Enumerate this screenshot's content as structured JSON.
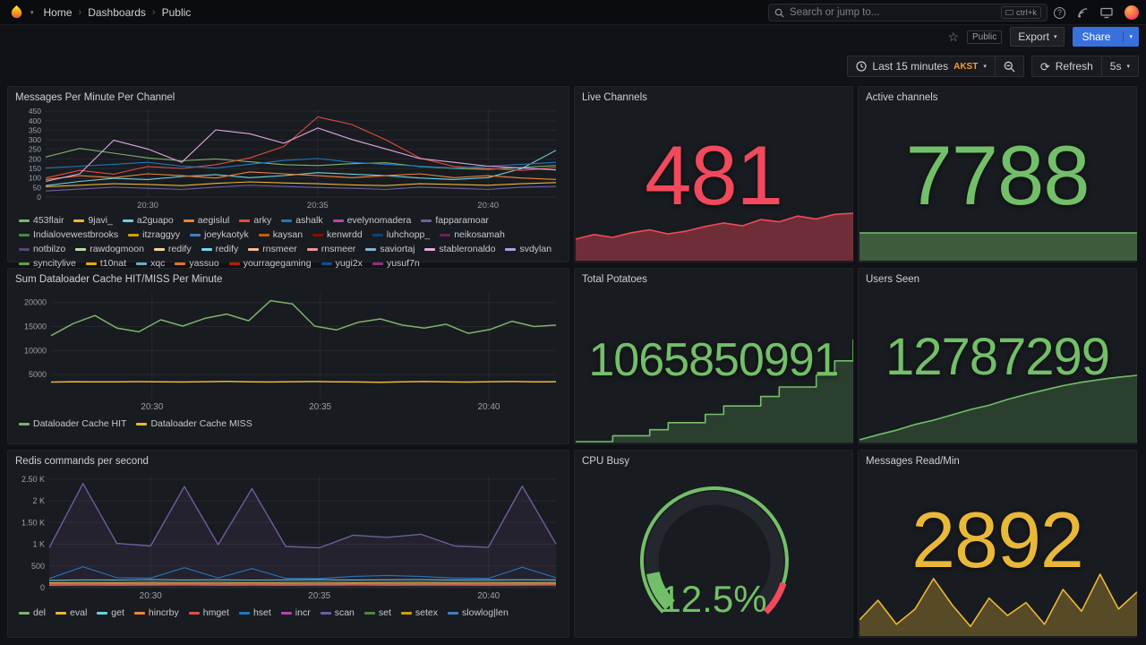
{
  "icons": {
    "separator": "›",
    "chevron_down": "▾",
    "star": "☆",
    "refresh": "⟳",
    "question_mark": "?"
  },
  "nav": {
    "breadcrumb": [
      "Home",
      "Dashboards",
      "Public"
    ],
    "search_placeholder": "Search or jump to...",
    "search_shortcut": "ctrl+k"
  },
  "toolbar": {
    "tag": "Public",
    "export_label": "Export",
    "share_label": "Share"
  },
  "controls": {
    "time_range": "Last 15 minutes",
    "timezone": "AKST",
    "timezone_color": "#FF9830",
    "refresh_label": "Refresh",
    "interval": "5s"
  },
  "panels": {
    "messages_per_minute": {
      "title": "Messages Per Minute Per Channel",
      "chart": {
        "type": "timeseries",
        "ylim": [
          0,
          460
        ],
        "tickFont": 8.5,
        "margin": {
          "l": 34,
          "r": 8,
          "t": 4,
          "b": 16
        },
        "yticks": [
          {
            "v": 0,
            "label": "0"
          },
          {
            "v": 50,
            "label": "50"
          },
          {
            "v": 100,
            "label": "100"
          },
          {
            "v": 150,
            "label": "150"
          },
          {
            "v": 200,
            "label": "200"
          },
          {
            "v": 250,
            "label": "250"
          },
          {
            "v": 300,
            "label": "300"
          },
          {
            "v": 350,
            "label": "350"
          },
          {
            "v": 400,
            "label": "400"
          },
          {
            "v": 450,
            "label": "450"
          }
        ],
        "xticks": [
          {
            "pos": 0.2,
            "label": "20:30"
          },
          {
            "pos": 0.533,
            "label": "20:35"
          },
          {
            "pos": 0.867,
            "label": "20:40"
          }
        ],
        "series": [
          {
            "name": "453flair",
            "color": "#7EB26D",
            "values": [
              210,
              255,
              230,
              205,
              190,
              200,
              185,
              170,
              165,
              175,
              180,
              160,
              150,
              145,
              155,
              165
            ]
          },
          {
            "name": "9javi_",
            "color": "#EAB839",
            "values": [
              55,
              62,
              70,
              66,
              60,
              72,
              80,
              74,
              70,
              64,
              60,
              70,
              66,
              62,
              70,
              76
            ]
          },
          {
            "name": "a2guapo",
            "color": "#6ED0E0",
            "values": [
              60,
              82,
              98,
              92,
              108,
              118,
              102,
              112,
              128,
              120,
              112,
              100,
              92,
              102,
              150,
              245
            ]
          },
          {
            "name": "aegislul",
            "color": "#EF843C",
            "values": [
              92,
              112,
              102,
              122,
              112,
              100,
              132,
              122,
              112,
              102,
              112,
              122,
              102,
              112,
              100,
              92
            ]
          },
          {
            "name": "arky",
            "color": "#E24D42",
            "values": [
              100,
              140,
              120,
              160,
              150,
              170,
              205,
              265,
              420,
              380,
              300,
              205,
              160,
              150,
              140,
              155
            ]
          },
          {
            "name": "ashalk",
            "color": "#1F78C1",
            "values": [
              152,
              162,
              172,
              182,
              162,
              152,
              172,
              192,
              202,
              182,
              172,
              162,
              152,
              162,
              172,
              182
            ]
          },
          {
            "name": "fapparamoar",
            "color": "#705DA0",
            "values": [
              32,
              42,
              52,
              46,
              40,
              52,
              62,
              56,
              50,
              46,
              40,
              52,
              46,
              40,
              52,
              56
            ]
          },
          {
            "name": "stableronaldo",
            "color": "#E5A8E2",
            "values": [
              82,
              122,
              298,
              252,
              182,
              352,
              332,
              282,
              362,
              302,
              252,
              202,
              182,
              162,
              152,
              142
            ]
          }
        ]
      },
      "legend": [
        [
          "453flair",
          "#7EB26D"
        ],
        [
          "9javi_",
          "#EAB839"
        ],
        [
          "a2guapo",
          "#6ED0E0"
        ],
        [
          "aegislul",
          "#EF843C"
        ],
        [
          "arky",
          "#E24D42"
        ],
        [
          "ashalk",
          "#1F78C1"
        ],
        [
          "evelynomadera",
          "#BA43A9"
        ],
        [
          "fapparamoar",
          "#705DA0"
        ],
        [
          "Indialovewestbrooks",
          "#508642"
        ],
        [
          "itzraggyy",
          "#CCA300"
        ],
        [
          "joeykaotyk",
          "#447EBC"
        ],
        [
          "kaysan",
          "#C15C17"
        ],
        [
          "kenwrdd",
          "#890F02"
        ],
        [
          "luhchopp_",
          "#0A437C"
        ],
        [
          "neikosamah",
          "#6D1F62"
        ],
        [
          "notbilzo",
          "#584477"
        ],
        [
          "rawdogmoon",
          "#B7DBAB"
        ],
        [
          "redify",
          "#F4D598"
        ],
        [
          "redify",
          "#70DBED"
        ],
        [
          "rnsmeer",
          "#F9BA8F"
        ],
        [
          "rnsmeer",
          "#F29191"
        ],
        [
          "saviortaj",
          "#82B5D8"
        ],
        [
          "stableronaldo",
          "#E5A8E2"
        ],
        [
          "svdylan",
          "#AEA2E0"
        ],
        [
          "syncitylive",
          "#629E51"
        ],
        [
          "t10nat",
          "#E5AC0E"
        ],
        [
          "xqc",
          "#64B0C8"
        ],
        [
          "yassuo",
          "#E0752D"
        ],
        [
          "yourragegaming",
          "#BF1B00"
        ],
        [
          "yugi2x",
          "#0A50A1"
        ],
        [
          "yusuf7n",
          "#962D82"
        ]
      ]
    },
    "live_channels": {
      "title": "Live Channels",
      "value": "481",
      "color": "#F2495C",
      "spark": {
        "type": "spark",
        "color": "#F2495C",
        "fillOpacity": 0.4,
        "min": 400,
        "values": [
          436,
          444,
          439,
          447,
          452,
          445,
          450,
          458,
          464,
          459,
          470,
          466,
          476,
          471,
          479,
          481
        ]
      }
    },
    "active_channels": {
      "title": "Active channels",
      "value": "7788",
      "color": "#73BF69",
      "spark": {
        "type": "spark",
        "color": "#73BF69",
        "fillOpacity": 0.4,
        "min": 7000,
        "values": [
          7788,
          7788,
          7788,
          7788,
          7788,
          7788,
          7788,
          7788,
          7788,
          7788,
          7788,
          7788
        ]
      }
    },
    "dataloader": {
      "title": "Sum Dataloader Cache HIT/MISS Per Minute",
      "chart": {
        "type": "timeseries",
        "ylim": [
          0,
          22000
        ],
        "tickFont": 9,
        "margin": {
          "l": 40,
          "r": 8,
          "t": 6,
          "b": 18
        },
        "yticks": [
          {
            "v": 5000,
            "label": "5000"
          },
          {
            "v": 10000,
            "label": "10000"
          },
          {
            "v": 15000,
            "label": "15000"
          },
          {
            "v": 20000,
            "label": "20000"
          }
        ],
        "xticks": [
          {
            "pos": 0.2,
            "label": "20:30"
          },
          {
            "pos": 0.533,
            "label": "20:35"
          },
          {
            "pos": 0.867,
            "label": "20:40"
          }
        ],
        "series": [
          {
            "name": "Dataloader Cache HIT",
            "color": "#7EB26D",
            "width": 1.5,
            "values": [
              13100,
              15600,
              17300,
              14700,
              13900,
              16400,
              15100,
              16700,
              17600,
              16200,
              20400,
              19700,
              15100,
              14300,
              15900,
              16600,
              15300,
              14700,
              15500,
              13600,
              14400,
              16100,
              15000,
              15300
            ]
          },
          {
            "name": "Dataloader Cache MISS",
            "color": "#EAB839",
            "width": 1.5,
            "values": [
              3450,
              3520,
              3480,
              3510,
              3550,
              3500,
              3460,
              3520,
              3600,
              3510,
              3470,
              3530,
              3560,
              3500,
              3460,
              3420,
              3510,
              3560,
              3500,
              3450,
              3520,
              3560,
              3510,
              3530
            ]
          }
        ]
      },
      "legend": [
        [
          "Dataloader Cache HIT",
          "#7EB26D"
        ],
        [
          "Dataloader Cache MISS",
          "#EAB839"
        ]
      ]
    },
    "total_potatoes": {
      "title": "Total Potatoes",
      "value": "1065850991",
      "color": "#73BF69",
      "spark": {
        "type": "spark",
        "color": "#73BF69",
        "fillOpacity": 0.22,
        "step": true,
        "values": [
          1065808000,
          1065808000,
          1065810500,
          1065810500,
          1065813000,
          1065816000,
          1065816000,
          1065819500,
          1065823000,
          1065823000,
          1065827000,
          1065831000,
          1065831000,
          1065836000,
          1065842000,
          1065850991
        ]
      }
    },
    "users_seen": {
      "title": "Users Seen",
      "value": "12787299",
      "color": "#73BF69",
      "spark": {
        "type": "spark",
        "color": "#73BF69",
        "fillOpacity": 0.22,
        "min": 12770000,
        "values": [
          12770500,
          12771800,
          12773000,
          12774500,
          12775600,
          12777000,
          12778400,
          12779500,
          12781000,
          12782300,
          12783500,
          12784600,
          12785500,
          12786200,
          12786800,
          12787299
        ]
      }
    },
    "redis": {
      "title": "Redis commands per second",
      "chart": {
        "type": "timeseries",
        "ylim": [
          0,
          2600
        ],
        "tickFont": 9,
        "margin": {
          "l": 38,
          "r": 8,
          "t": 6,
          "b": 18
        },
        "yticks": [
          {
            "v": 0,
            "label": "0"
          },
          {
            "v": 500,
            "label": "500"
          },
          {
            "v": 1000,
            "label": "1 K"
          },
          {
            "v": 1500,
            "label": "1.50 K"
          },
          {
            "v": 2000,
            "label": "2 K"
          },
          {
            "v": 2500,
            "label": "2.50 K"
          }
        ],
        "xticks": [
          {
            "pos": 0.2,
            "label": "20:30"
          },
          {
            "pos": 0.533,
            "label": "20:35"
          },
          {
            "pos": 0.867,
            "label": "20:40"
          }
        ],
        "series": [
          {
            "name": "del",
            "color": "#7EB26D",
            "values": [
              55,
              60,
              58,
              60,
              62,
              58,
              60,
              57,
              60,
              62,
              58,
              60,
              59,
              58,
              60,
              61
            ]
          },
          {
            "name": "eval",
            "color": "#EAB839",
            "values": [
              115,
              120,
              118,
              122,
              119,
              121,
              117,
              120,
              123,
              118,
              120,
              122,
              119,
              121,
              118,
              120
            ]
          },
          {
            "name": "get",
            "color": "#6ED0E0",
            "values": [
              170,
              180,
              175,
              185,
              178,
              182,
              176,
              180,
              184,
              178,
              181,
              183,
              177,
              180,
              182,
              179
            ]
          },
          {
            "name": "hincrby",
            "color": "#EF843C",
            "values": [
              88,
              92,
              90,
              94,
              91,
              93,
              89,
              92,
              95,
              90,
              92,
              94,
              91,
              93,
              90,
              92
            ]
          },
          {
            "name": "hmget",
            "color": "#E24D42",
            "values": [
              75,
              78,
              76,
              80,
              77,
              79,
              76,
              78,
              81,
              77,
              79,
              80,
              76,
              78,
              80,
              77
            ]
          },
          {
            "name": "hset",
            "color": "#1F78C1",
            "values": [
              210,
              480,
              230,
              220,
              460,
              225,
              440,
              215,
              210,
              260,
              280,
              260,
              220,
              215,
              470,
              230
            ]
          },
          {
            "name": "scan",
            "color": "#705DA0",
            "width": 1.4,
            "fill": true,
            "fillOpacity": 0.12,
            "values": [
              920,
              2400,
              1020,
              960,
              2330,
              990,
              2280,
              950,
              920,
              1210,
              1160,
              1230,
              960,
              930,
              2340,
              1010
            ]
          }
        ]
      },
      "legend": [
        [
          "del",
          "#7EB26D"
        ],
        [
          "eval",
          "#EAB839"
        ],
        [
          "get",
          "#6ED0E0"
        ],
        [
          "hincrby",
          "#EF843C"
        ],
        [
          "hmget",
          "#E24D42"
        ],
        [
          "hset",
          "#1F78C1"
        ],
        [
          "incr",
          "#BA43A9"
        ],
        [
          "scan",
          "#705DA0"
        ],
        [
          "set",
          "#508642"
        ],
        [
          "setex",
          "#CCA300"
        ],
        [
          "slowlog|len",
          "#447EBC"
        ]
      ]
    },
    "cpu_busy": {
      "title": "CPU Busy",
      "value_text": "12.5%",
      "color": "#73BF69",
      "gauge": {
        "type": "gauge",
        "value": 12.5,
        "max": 100,
        "color": "#73BF69",
        "threshold_color": "#F2495C",
        "threshold_start": 0.9
      }
    },
    "messages_read": {
      "title": "Messages Read/Min",
      "value": "2892",
      "color": "#EAB839",
      "spark": {
        "type": "spark",
        "color": "#EAB839",
        "fillOpacity": 0.3,
        "min": 1900,
        "values": [
          2250,
          2700,
          2150,
          2500,
          3200,
          2600,
          2100,
          2750,
          2350,
          2650,
          2150,
          2950,
          2450,
          3300,
          2500,
          2892
        ]
      }
    }
  }
}
